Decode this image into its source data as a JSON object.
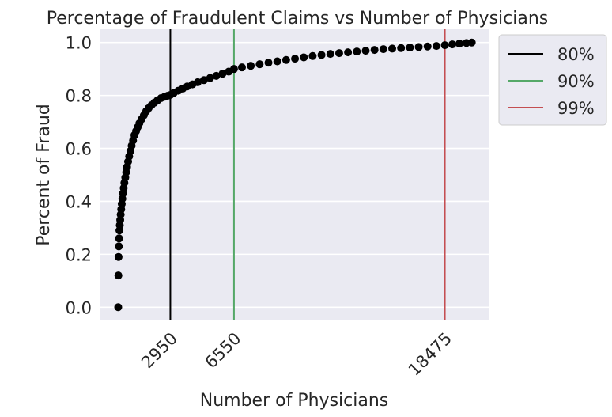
{
  "chart_data": {
    "type": "scatter",
    "title": "Percentage of Fraudulent Claims vs Number of Physicians",
    "xlabel": "Number of Physicians",
    "ylabel": "Percent of Fraud",
    "xlim": [
      -1050,
      21000
    ],
    "ylim": [
      -0.05,
      1.05
    ],
    "yticks": [
      0.0,
      0.2,
      0.4,
      0.6,
      0.8,
      1.0
    ],
    "ytick_labels": [
      "0.0",
      "0.2",
      "0.4",
      "0.6",
      "0.8",
      "1.0"
    ],
    "xticks": [
      2950,
      6550,
      18475
    ],
    "xtick_labels": [
      "2950",
      "6550",
      "18475"
    ],
    "xtick_rotation": 45,
    "grid": true,
    "legend_placement": "outside-upper-right",
    "background_color": "#eaeaf2",
    "marker_color": "#000000",
    "series": [
      {
        "name": "",
        "color": "#000000",
        "points": [
          [
            0,
            0.0
          ],
          [
            10,
            0.12
          ],
          [
            20,
            0.19
          ],
          [
            35,
            0.23
          ],
          [
            50,
            0.26
          ],
          [
            70,
            0.29
          ],
          [
            90,
            0.31
          ],
          [
            115,
            0.33
          ],
          [
            140,
            0.35
          ],
          [
            170,
            0.37
          ],
          [
            200,
            0.39
          ],
          [
            235,
            0.41
          ],
          [
            270,
            0.43
          ],
          [
            310,
            0.45
          ],
          [
            350,
            0.47
          ],
          [
            400,
            0.49
          ],
          [
            450,
            0.51
          ],
          [
            500,
            0.53
          ],
          [
            560,
            0.55
          ],
          [
            620,
            0.57
          ],
          [
            690,
            0.59
          ],
          [
            760,
            0.61
          ],
          [
            840,
            0.63
          ],
          [
            920,
            0.65
          ],
          [
            1010,
            0.665
          ],
          [
            1100,
            0.68
          ],
          [
            1200,
            0.695
          ],
          [
            1320,
            0.71
          ],
          [
            1450,
            0.725
          ],
          [
            1580,
            0.74
          ],
          [
            1720,
            0.752
          ],
          [
            1880,
            0.763
          ],
          [
            2050,
            0.773
          ],
          [
            2230,
            0.782
          ],
          [
            2420,
            0.79
          ],
          [
            2620,
            0.795
          ],
          [
            2800,
            0.799
          ],
          [
            2950,
            0.802
          ],
          [
            3150,
            0.81
          ],
          [
            3400,
            0.818
          ],
          [
            3650,
            0.826
          ],
          [
            3900,
            0.834
          ],
          [
            4200,
            0.842
          ],
          [
            4500,
            0.85
          ],
          [
            4850,
            0.858
          ],
          [
            5200,
            0.866
          ],
          [
            5550,
            0.874
          ],
          [
            5900,
            0.882
          ],
          [
            6250,
            0.89
          ],
          [
            6550,
            0.9
          ],
          [
            7000,
            0.906
          ],
          [
            7500,
            0.912
          ],
          [
            8000,
            0.918
          ],
          [
            8500,
            0.924
          ],
          [
            9000,
            0.929
          ],
          [
            9500,
            0.934
          ],
          [
            10000,
            0.939
          ],
          [
            10500,
            0.944
          ],
          [
            11000,
            0.949
          ],
          [
            11500,
            0.953
          ],
          [
            12000,
            0.957
          ],
          [
            12500,
            0.96
          ],
          [
            13000,
            0.963
          ],
          [
            13500,
            0.966
          ],
          [
            14000,
            0.969
          ],
          [
            14500,
            0.972
          ],
          [
            15000,
            0.975
          ],
          [
            15500,
            0.977
          ],
          [
            16000,
            0.979
          ],
          [
            16500,
            0.981
          ],
          [
            17000,
            0.983
          ],
          [
            17500,
            0.985
          ],
          [
            18000,
            0.987
          ],
          [
            18475,
            0.99
          ],
          [
            18900,
            0.993
          ],
          [
            19300,
            0.996
          ],
          [
            19700,
            0.998
          ],
          [
            20000,
            1.0
          ]
        ]
      }
    ],
    "vlines": [
      {
        "x": 2950,
        "label": "80%",
        "color": "#000000"
      },
      {
        "x": 6550,
        "label": "90%",
        "color": "#55a868"
      },
      {
        "x": 18475,
        "label": "99%",
        "color": "#c44e52"
      }
    ]
  }
}
